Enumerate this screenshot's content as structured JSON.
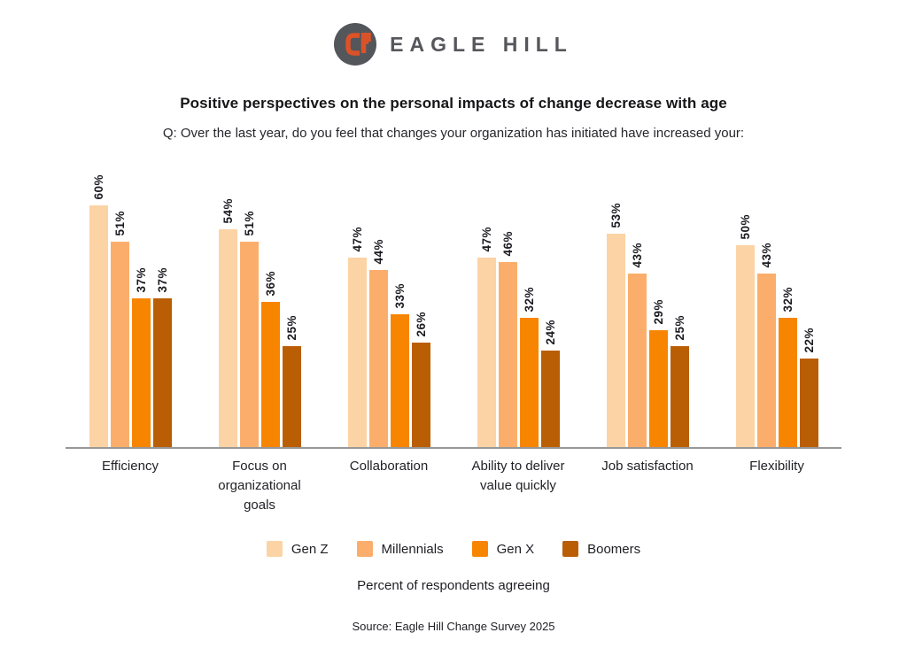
{
  "brand": {
    "wordmark": "EAGLE HILL",
    "logo_circle_color": "#53565A",
    "logo_mark_color": "#DC5228",
    "wordmark_color": "#55575B"
  },
  "title": "Positive perspectives on the personal impacts of change decrease with age",
  "subtitle": "Q: Over the last year, do you feel that changes your organization has initiated have increased your:",
  "chart_data": {
    "type": "bar",
    "categories": [
      "Efficiency",
      "Focus on\norganizational\ngoals",
      "Collaboration",
      "Ability to deliver\nvalue quickly",
      "Job satisfaction",
      "Flexibility"
    ],
    "series": [
      {
        "name": "Gen Z",
        "color": "#FCD3A4",
        "values": [
          60,
          54,
          47,
          47,
          53,
          50
        ]
      },
      {
        "name": "Millennials",
        "color": "#FBAE6B",
        "values": [
          51,
          51,
          44,
          46,
          43,
          43
        ]
      },
      {
        "name": "Gen X",
        "color": "#F88500",
        "values": [
          37,
          36,
          33,
          32,
          29,
          32
        ]
      },
      {
        "name": "Boomers",
        "color": "#BA5E05",
        "values": [
          37,
          25,
          26,
          24,
          25,
          22
        ]
      }
    ],
    "value_suffix": "%",
    "data_labels": "rotated-90-above-bars",
    "ylim": [
      0,
      65
    ],
    "grid": false,
    "legend_position": "bottom",
    "axis_line_color": "#979797",
    "xlabel": "",
    "ylabel": ""
  },
  "axis_note": "Percent of respondents agreeing",
  "source": "Source: Eagle Hill Change Survey 2025"
}
